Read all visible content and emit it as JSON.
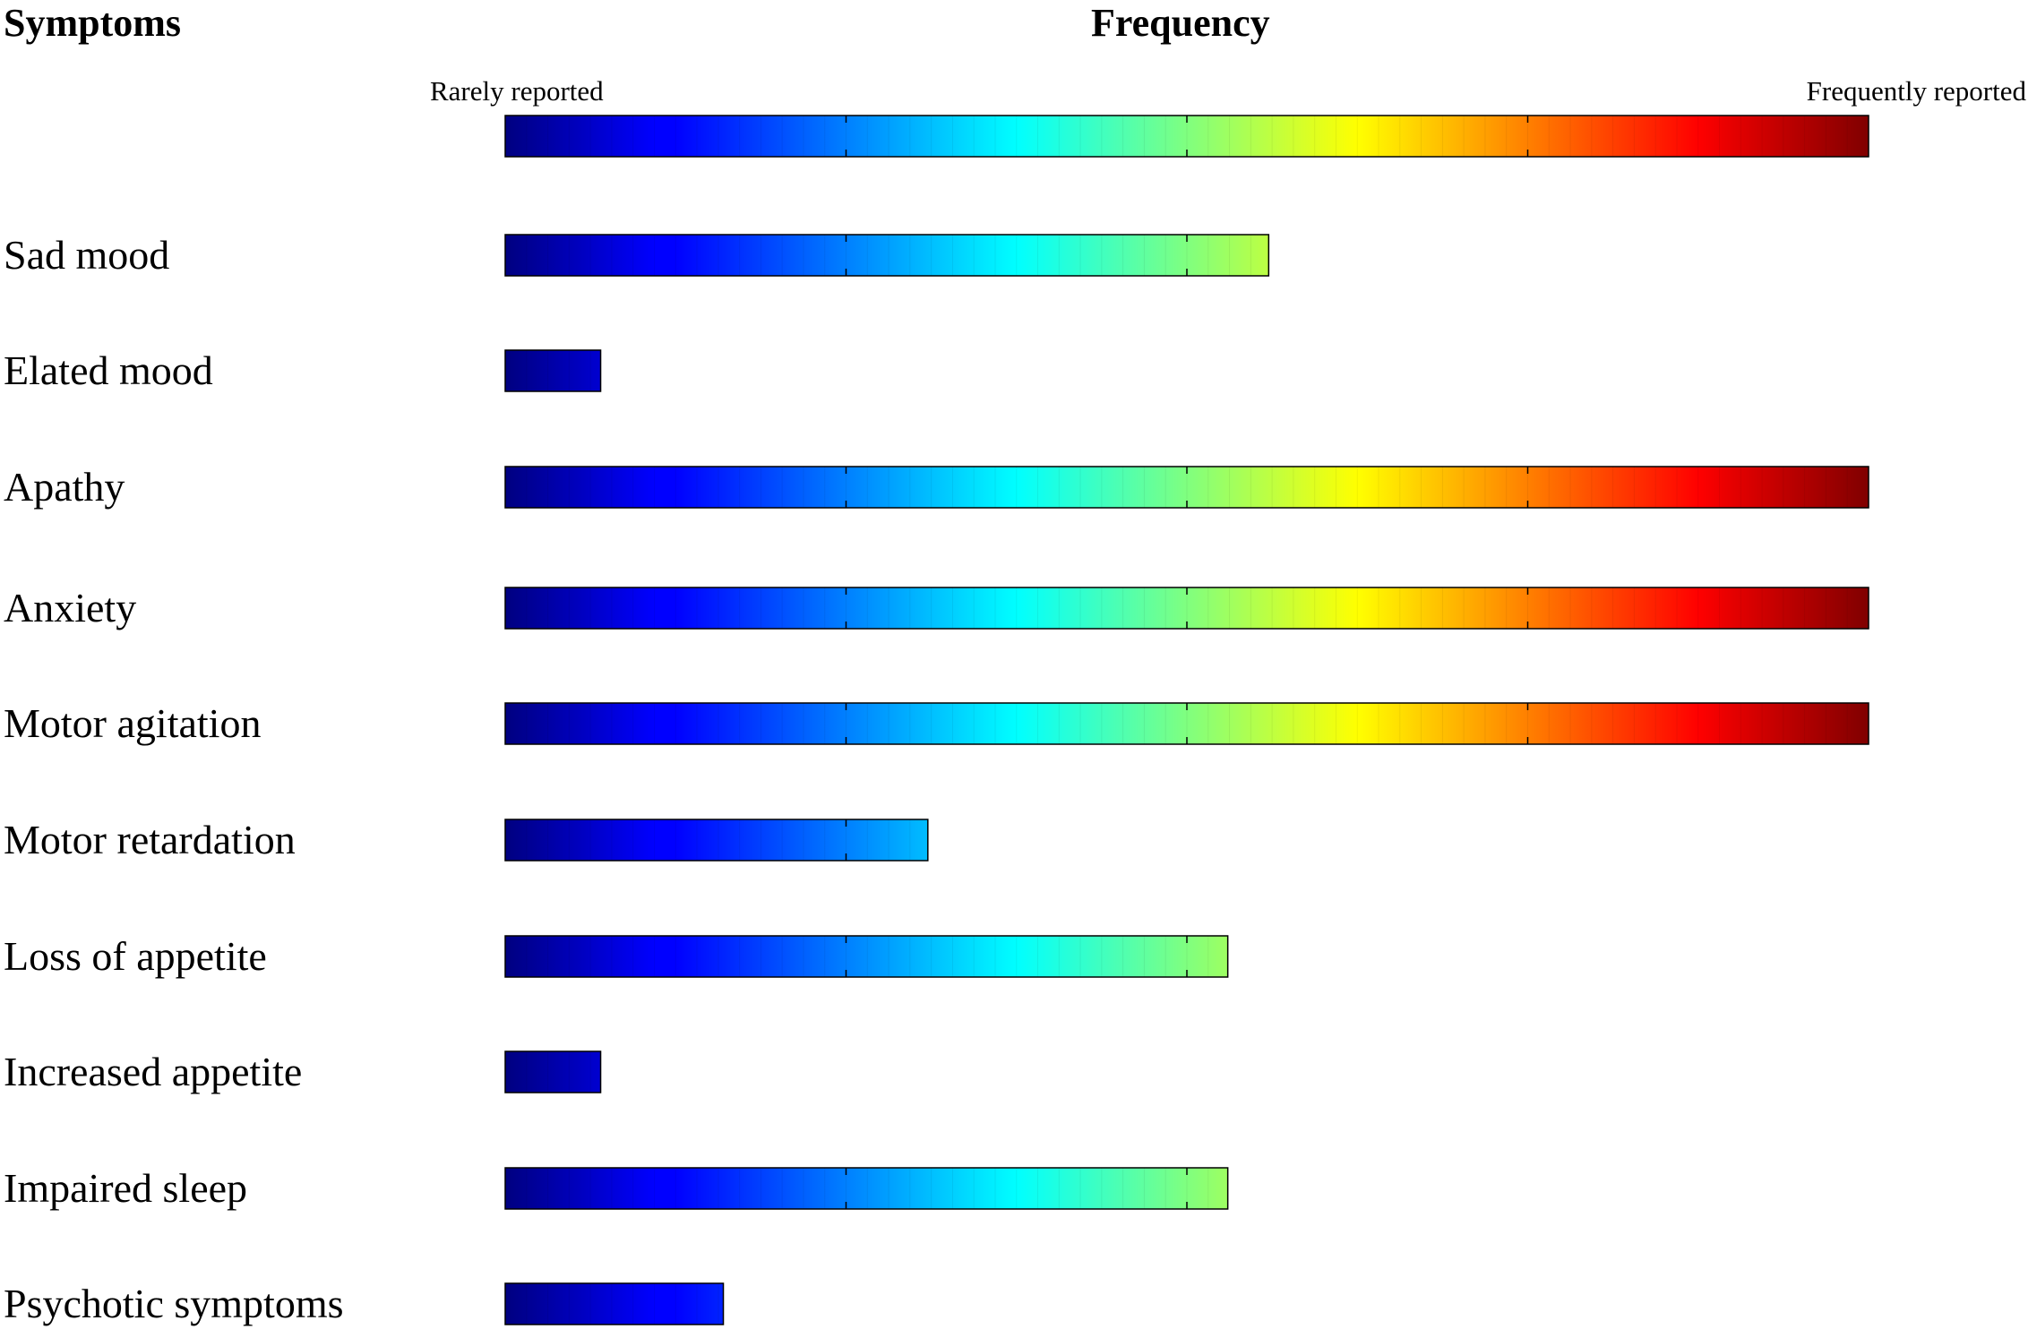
{
  "chart_data": {
    "type": "bar",
    "title": "",
    "column_headers": {
      "symptoms": "Symptoms",
      "frequency": "Frequency"
    },
    "scale_labels": {
      "low": "Rarely reported",
      "high": "Frequently reported"
    },
    "xlabel": "Frequency",
    "ylabel": "Symptoms",
    "xlim": [
      0,
      1
    ],
    "colormap": "jet",
    "categories": [
      "Sad mood",
      "Elated mood",
      "Apathy",
      "Anxiety",
      "Motor agitation",
      "Motor retardation",
      "Loss of appetite",
      "Increased appetite",
      "Impaired sleep",
      "Psychotic symptoms"
    ],
    "values": [
      0.56,
      0.07,
      1.0,
      1.0,
      1.0,
      0.31,
      0.53,
      0.07,
      0.53,
      0.16
    ],
    "grid": false,
    "legend": "colorbar at top"
  }
}
